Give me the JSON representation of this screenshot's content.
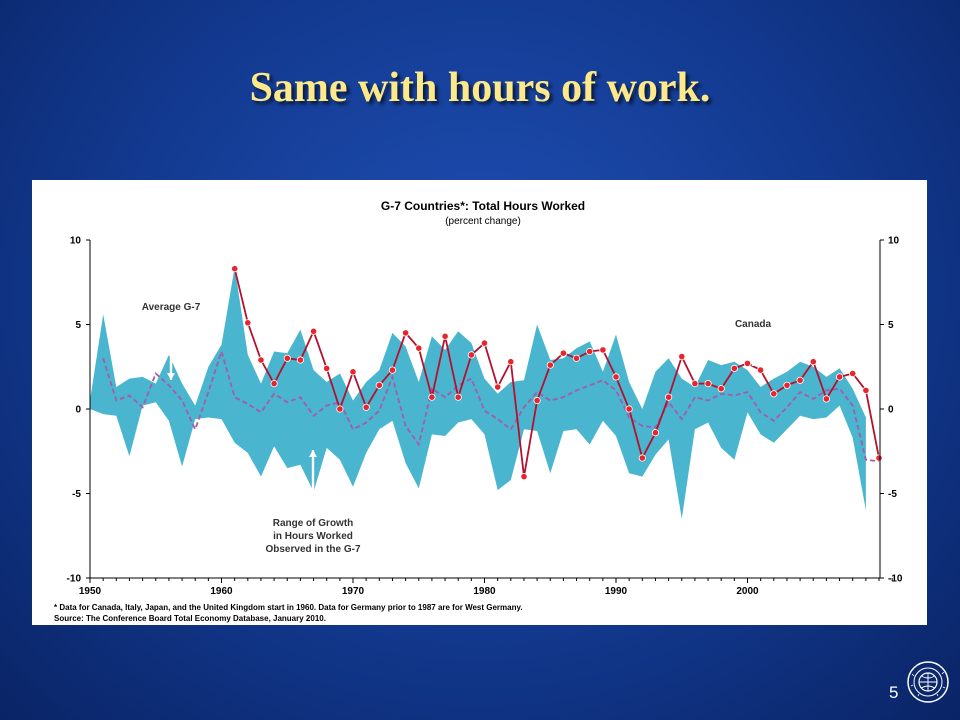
{
  "slide": {
    "title": "Same with hours of work.",
    "page_number": "5"
  },
  "chart_data": {
    "type": "line",
    "title": "G-7 Countries*:  Total Hours Worked",
    "subtitle": "(percent change)",
    "ylim": [
      -10,
      10
    ],
    "yticks": [
      10,
      5,
      0,
      -5,
      -10
    ],
    "xlim": [
      1950,
      2011
    ],
    "xticks": [
      1950,
      1960,
      1970,
      1980,
      1990,
      2000
    ],
    "footnote": "* Data for Canada, Italy, Japan, and the United Kingdom start in 1960.  Data for Germany prior to 1987 are for West Germany.",
    "source": "Source:  The Conference Board Total Economy Database, January 2010.",
    "annotations": {
      "average": "Average G-7",
      "canada": "Canada",
      "range_line1": "Range of Growth",
      "range_line2": "in Hours Worked",
      "range_line3": "Observed in the G-7"
    },
    "colors": {
      "range": "#49b5cf",
      "canada": "#b5102e",
      "marker": "#e8242c",
      "average": "#a45ca6"
    },
    "range_years": [
      1950,
      1951,
      1952,
      1953,
      1954,
      1955,
      1956,
      1957,
      1958,
      1959,
      1960,
      1961,
      1962,
      1963,
      1964,
      1965,
      1966,
      1967,
      1968,
      1969,
      1970,
      1971,
      1972,
      1973,
      1974,
      1975,
      1976,
      1977,
      1978,
      1979,
      1980,
      1981,
      1982,
      1983,
      1984,
      1985,
      1986,
      1987,
      1988,
      1989,
      1990,
      1991,
      1992,
      1993,
      1994,
      1995,
      1996,
      1997,
      1998,
      1999,
      2000,
      2001,
      2002,
      2003,
      2004,
      2005,
      2006,
      2007,
      2008,
      2009
    ],
    "range_high": [
      0.5,
      5.6,
      1.3,
      1.8,
      1.9,
      1.5,
      3.2,
      1.5,
      0.2,
      2.5,
      3.8,
      8.4,
      3.2,
      1.5,
      3.4,
      3.3,
      4.7,
      2.3,
      1.6,
      2.1,
      0.5,
      1.6,
      2.3,
      4.5,
      3.7,
      1.6,
      4.3,
      3.5,
      4.6,
      3.9,
      1.8,
      0.9,
      1.6,
      1.7,
      5.0,
      2.9,
      3.0,
      3.6,
      4.0,
      2.2,
      4.4,
      1.6,
      0.0,
      2.2,
      3.0,
      1.8,
      1.3,
      2.9,
      2.6,
      2.8,
      2.3,
      1.3,
      1.8,
      2.2,
      2.8,
      2.5,
      1.9,
      2.4,
      1.2,
      -0.5
    ],
    "range_low": [
      0.0,
      -0.3,
      -0.4,
      -2.8,
      0.2,
      0.4,
      -0.7,
      -3.4,
      -0.6,
      -0.5,
      -0.6,
      -2.0,
      -2.6,
      -4.0,
      -2.2,
      -3.5,
      -3.3,
      -4.9,
      -2.3,
      -3.0,
      -4.6,
      -2.6,
      -1.2,
      -0.7,
      -3.2,
      -4.7,
      -1.5,
      -1.6,
      -0.8,
      -0.6,
      -1.5,
      -4.8,
      -4.2,
      -1.2,
      -1.3,
      -3.8,
      -1.3,
      -1.2,
      -2.1,
      -0.7,
      -1.6,
      -3.8,
      -4.0,
      -2.7,
      -1.8,
      -6.5,
      -1.2,
      -0.8,
      -2.3,
      -3.0,
      -0.2,
      -1.5,
      -2.0,
      -1.2,
      -0.4,
      -0.6,
      -0.5,
      0.2,
      -1.7,
      -6.0
    ],
    "series": [
      {
        "name": "Canada",
        "x": [
          1961,
          1962,
          1963,
          1964,
          1965,
          1966,
          1967,
          1968,
          1969,
          1970,
          1971,
          1972,
          1973,
          1974,
          1975,
          1976,
          1977,
          1978,
          1979,
          1980,
          1981,
          1982,
          1983,
          1984,
          1985,
          1986,
          1987,
          1988,
          1989,
          1990,
          1991,
          1992,
          1993,
          1994,
          1995,
          1996,
          1997,
          1998,
          1999,
          2000,
          2001,
          2002,
          2003,
          2004,
          2005,
          2006,
          2007,
          2008,
          2009,
          2010
        ],
        "values": [
          8.3,
          5.1,
          2.9,
          1.5,
          3.0,
          2.9,
          4.6,
          2.4,
          0.0,
          2.2,
          0.1,
          1.4,
          2.3,
          4.5,
          3.6,
          0.7,
          4.3,
          0.7,
          3.2,
          3.9,
          1.3,
          2.8,
          -4.0,
          0.5,
          2.6,
          3.3,
          3.0,
          3.4,
          3.5,
          1.9,
          0.0,
          -2.9,
          -1.4,
          0.7,
          3.1,
          1.5,
          1.5,
          1.2,
          2.4,
          2.7,
          2.3,
          0.9,
          1.4,
          1.7,
          2.8,
          0.6,
          1.9,
          2.1,
          1.1,
          -2.9
        ]
      },
      {
        "name": "Average G-7",
        "x": [
          1951,
          1952,
          1953,
          1954,
          1955,
          1956,
          1957,
          1958,
          1959,
          1960,
          1961,
          1962,
          1963,
          1964,
          1965,
          1966,
          1967,
          1968,
          1969,
          1970,
          1971,
          1972,
          1973,
          1974,
          1975,
          1976,
          1977,
          1978,
          1979,
          1980,
          1981,
          1982,
          1983,
          1984,
          1985,
          1986,
          1987,
          1988,
          1989,
          1990,
          1991,
          1992,
          1993,
          1994,
          1995,
          1996,
          1997,
          1998,
          1999,
          2000,
          2001,
          2002,
          2003,
          2004,
          2005,
          2006,
          2007,
          2008,
          2009,
          2010
        ],
        "values": [
          3.0,
          0.5,
          0.8,
          0.1,
          2.1,
          1.4,
          0.5,
          -1.2,
          1.0,
          3.4,
          0.7,
          0.3,
          -0.2,
          0.9,
          0.4,
          0.7,
          -0.4,
          0.2,
          0.4,
          -1.2,
          -0.8,
          -0.1,
          1.9,
          -1.0,
          -2.1,
          1.2,
          0.7,
          1.4,
          1.8,
          -0.1,
          -0.6,
          -1.2,
          0.1,
          1.0,
          0.5,
          0.7,
          1.1,
          1.4,
          1.7,
          1.1,
          -0.5,
          -1.0,
          -1.1,
          0.4,
          -0.6,
          0.7,
          0.5,
          0.9,
          0.8,
          1.0,
          -0.2,
          -0.7,
          0.1,
          1.0,
          0.6,
          1.1,
          1.2,
          0.2,
          -3.0,
          -3.1
        ]
      }
    ]
  }
}
